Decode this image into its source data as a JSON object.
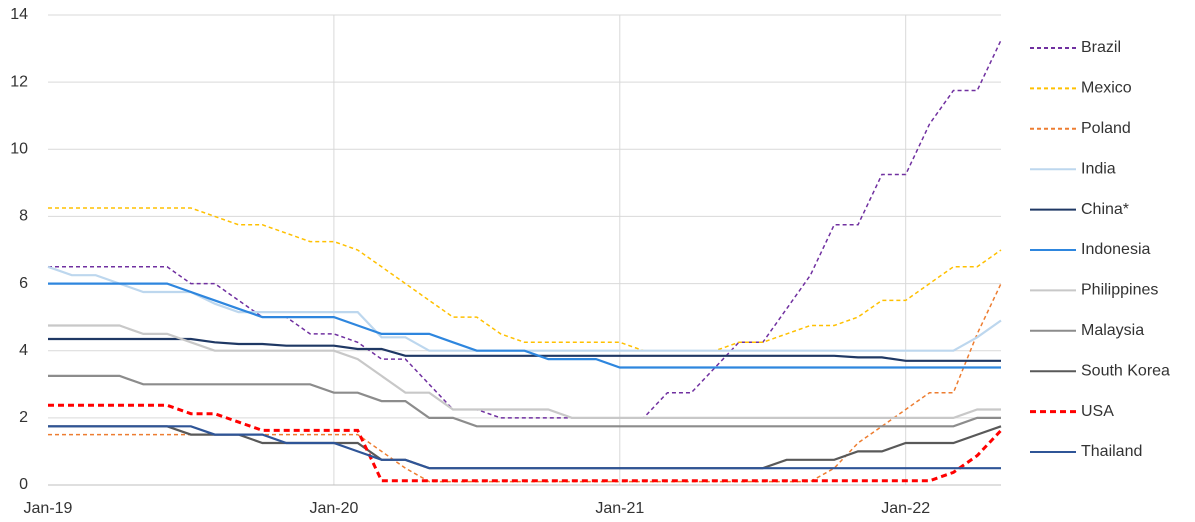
{
  "chart_data": {
    "type": "line",
    "categories": [
      "Jan-19",
      null,
      null,
      null,
      null,
      null,
      null,
      null,
      null,
      null,
      null,
      null,
      "Jan-20",
      null,
      null,
      null,
      null,
      null,
      null,
      null,
      null,
      null,
      null,
      null,
      "Jan-21",
      null,
      null,
      null,
      null,
      null,
      null,
      null,
      null,
      null,
      null,
      null,
      "Jan-22",
      null,
      null,
      null,
      null
    ],
    "ylim": [
      0,
      14
    ],
    "yticks": [
      0,
      2,
      4,
      6,
      8,
      10,
      12,
      14
    ],
    "grid": true,
    "legend": "right",
    "series": [
      {
        "name": "Brazil",
        "color": "#7030a0",
        "dashed": true,
        "values": [
          6.5,
          6.5,
          6.5,
          6.5,
          6.5,
          6.5,
          6.0,
          6.0,
          5.5,
          5.0,
          5.0,
          4.5,
          4.5,
          4.25,
          3.75,
          3.75,
          3.0,
          2.25,
          2.25,
          2.0,
          2.0,
          2.0,
          2.0,
          2.0,
          2.0,
          2.0,
          2.75,
          2.75,
          3.5,
          4.25,
          4.25,
          5.25,
          6.25,
          7.75,
          7.75,
          9.25,
          9.25,
          10.75,
          11.75,
          11.75,
          13.25
        ]
      },
      {
        "name": "Mexico",
        "color": "#ffc000",
        "dashed": true,
        "values": [
          8.25,
          8.25,
          8.25,
          8.25,
          8.25,
          8.25,
          8.25,
          8.0,
          7.75,
          7.75,
          7.5,
          7.25,
          7.25,
          7.0,
          6.5,
          6.0,
          5.5,
          5.0,
          5.0,
          4.5,
          4.25,
          4.25,
          4.25,
          4.25,
          4.25,
          4.0,
          4.0,
          4.0,
          4.0,
          4.25,
          4.25,
          4.5,
          4.75,
          4.75,
          5.0,
          5.5,
          5.5,
          6.0,
          6.5,
          6.5,
          7.0
        ]
      },
      {
        "name": "Poland",
        "color": "#ed7d31",
        "dashed": true,
        "values": [
          1.5,
          1.5,
          1.5,
          1.5,
          1.5,
          1.5,
          1.5,
          1.5,
          1.5,
          1.5,
          1.5,
          1.5,
          1.5,
          1.5,
          1.0,
          0.5,
          0.1,
          0.1,
          0.1,
          0.1,
          0.1,
          0.1,
          0.1,
          0.1,
          0.1,
          0.1,
          0.1,
          0.1,
          0.1,
          0.1,
          0.1,
          0.1,
          0.1,
          0.5,
          1.25,
          1.75,
          2.25,
          2.75,
          2.75,
          4.5,
          6.0
        ]
      },
      {
        "name": "India",
        "color": "#bdd7ee",
        "dashed": false,
        "values": [
          6.5,
          6.25,
          6.25,
          6.0,
          5.75,
          5.75,
          5.75,
          5.4,
          5.15,
          5.15,
          5.15,
          5.15,
          5.15,
          5.15,
          4.4,
          4.4,
          4.0,
          4.0,
          4.0,
          4.0,
          4.0,
          4.0,
          4.0,
          4.0,
          4.0,
          4.0,
          4.0,
          4.0,
          4.0,
          4.0,
          4.0,
          4.0,
          4.0,
          4.0,
          4.0,
          4.0,
          4.0,
          4.0,
          4.0,
          4.4,
          4.9
        ]
      },
      {
        "name": "China*",
        "color": "#1f3864",
        "dashed": false,
        "values": [
          4.35,
          4.35,
          4.35,
          4.35,
          4.35,
          4.35,
          4.35,
          4.25,
          4.2,
          4.2,
          4.15,
          4.15,
          4.15,
          4.05,
          4.05,
          3.85,
          3.85,
          3.85,
          3.85,
          3.85,
          3.85,
          3.85,
          3.85,
          3.85,
          3.85,
          3.85,
          3.85,
          3.85,
          3.85,
          3.85,
          3.85,
          3.85,
          3.85,
          3.85,
          3.8,
          3.8,
          3.7,
          3.7,
          3.7,
          3.7,
          3.7
        ]
      },
      {
        "name": "Indonesia",
        "color": "#2e86de",
        "dashed": false,
        "values": [
          6.0,
          6.0,
          6.0,
          6.0,
          6.0,
          6.0,
          5.75,
          5.5,
          5.25,
          5.0,
          5.0,
          5.0,
          5.0,
          4.75,
          4.5,
          4.5,
          4.5,
          4.25,
          4.0,
          4.0,
          4.0,
          3.75,
          3.75,
          3.75,
          3.5,
          3.5,
          3.5,
          3.5,
          3.5,
          3.5,
          3.5,
          3.5,
          3.5,
          3.5,
          3.5,
          3.5,
          3.5,
          3.5,
          3.5,
          3.5,
          3.5
        ]
      },
      {
        "name": "Philippines",
        "color": "#c8c8c8",
        "dashed": false,
        "values": [
          4.75,
          4.75,
          4.75,
          4.75,
          4.5,
          4.5,
          4.25,
          4.0,
          4.0,
          4.0,
          4.0,
          4.0,
          4.0,
          3.75,
          3.25,
          2.75,
          2.75,
          2.25,
          2.25,
          2.25,
          2.25,
          2.25,
          2.0,
          2.0,
          2.0,
          2.0,
          2.0,
          2.0,
          2.0,
          2.0,
          2.0,
          2.0,
          2.0,
          2.0,
          2.0,
          2.0,
          2.0,
          2.0,
          2.0,
          2.25,
          2.25
        ]
      },
      {
        "name": "Malaysia",
        "color": "#8c8c8c",
        "dashed": false,
        "values": [
          3.25,
          3.25,
          3.25,
          3.25,
          3.0,
          3.0,
          3.0,
          3.0,
          3.0,
          3.0,
          3.0,
          3.0,
          2.75,
          2.75,
          2.5,
          2.5,
          2.0,
          2.0,
          1.75,
          1.75,
          1.75,
          1.75,
          1.75,
          1.75,
          1.75,
          1.75,
          1.75,
          1.75,
          1.75,
          1.75,
          1.75,
          1.75,
          1.75,
          1.75,
          1.75,
          1.75,
          1.75,
          1.75,
          1.75,
          2.0,
          2.0
        ]
      },
      {
        "name": "South Korea",
        "color": "#595959",
        "dashed": false,
        "values": [
          1.75,
          1.75,
          1.75,
          1.75,
          1.75,
          1.75,
          1.5,
          1.5,
          1.5,
          1.25,
          1.25,
          1.25,
          1.25,
          1.25,
          0.75,
          0.75,
          0.5,
          0.5,
          0.5,
          0.5,
          0.5,
          0.5,
          0.5,
          0.5,
          0.5,
          0.5,
          0.5,
          0.5,
          0.5,
          0.5,
          0.5,
          0.75,
          0.75,
          0.75,
          1.0,
          1.0,
          1.25,
          1.25,
          1.25,
          1.5,
          1.75
        ]
      },
      {
        "name": "USA",
        "color": "#ff0000",
        "dashed": true,
        "values": [
          2.375,
          2.375,
          2.375,
          2.375,
          2.375,
          2.375,
          2.125,
          2.125,
          1.875,
          1.625,
          1.625,
          1.625,
          1.625,
          1.625,
          0.125,
          0.125,
          0.125,
          0.125,
          0.125,
          0.125,
          0.125,
          0.125,
          0.125,
          0.125,
          0.125,
          0.125,
          0.125,
          0.125,
          0.125,
          0.125,
          0.125,
          0.125,
          0.125,
          0.125,
          0.125,
          0.125,
          0.125,
          0.125,
          0.375,
          0.875,
          1.625
        ]
      },
      {
        "name": "Thailand",
        "color": "#2f5597",
        "dashed": false,
        "values": [
          1.75,
          1.75,
          1.75,
          1.75,
          1.75,
          1.75,
          1.75,
          1.5,
          1.5,
          1.5,
          1.25,
          1.25,
          1.25,
          1.0,
          0.75,
          0.75,
          0.5,
          0.5,
          0.5,
          0.5,
          0.5,
          0.5,
          0.5,
          0.5,
          0.5,
          0.5,
          0.5,
          0.5,
          0.5,
          0.5,
          0.5,
          0.5,
          0.5,
          0.5,
          0.5,
          0.5,
          0.5,
          0.5,
          0.5,
          0.5,
          0.5
        ]
      }
    ]
  }
}
